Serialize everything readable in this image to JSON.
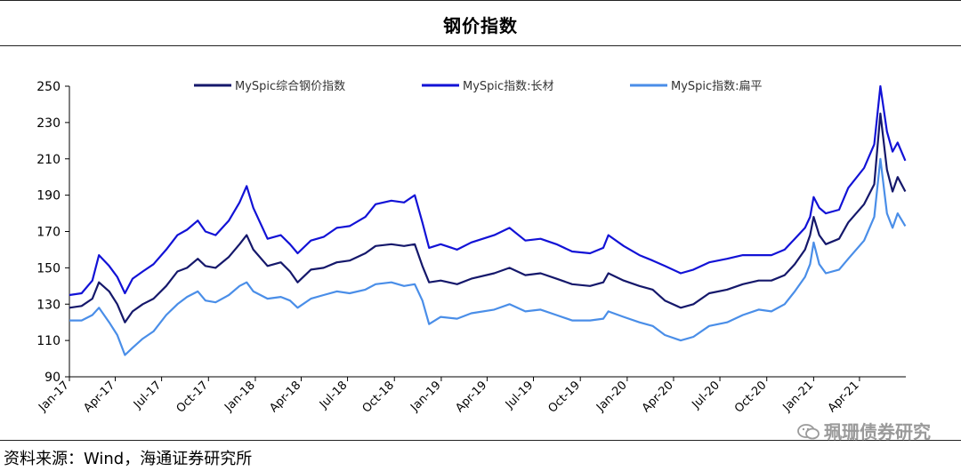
{
  "title": "钢价指数",
  "source": "资料来源：Wind，海通证券研究所",
  "watermark": "珮珊债券研究",
  "chart_data": {
    "type": "line",
    "ylim": [
      90,
      250
    ],
    "yticks": [
      90,
      110,
      130,
      150,
      170,
      190,
      210,
      230,
      250
    ],
    "xlim": [
      "2017-01-01",
      "2021-07-01"
    ],
    "xticks": [
      "Jan-17",
      "Apr-17",
      "Jul-17",
      "Oct-17",
      "Jan-18",
      "Apr-18",
      "Jul-18",
      "Oct-18",
      "Jan-19",
      "Apr-19",
      "Jul-19",
      "Oct-19",
      "Jan-20",
      "Apr-20",
      "Jul-20",
      "Oct-20",
      "Jan-21",
      "Apr-21"
    ],
    "grid": false,
    "legend_position": "top",
    "series": [
      {
        "name": "MySpic综合钢价指数",
        "color": "#15186b",
        "points": [
          [
            "2017-01-01",
            128
          ],
          [
            "2017-01-25",
            129
          ],
          [
            "2017-02-15",
            133
          ],
          [
            "2017-02-28",
            142
          ],
          [
            "2017-03-20",
            137
          ],
          [
            "2017-04-05",
            130
          ],
          [
            "2017-04-20",
            120
          ],
          [
            "2017-05-05",
            126
          ],
          [
            "2017-05-25",
            130
          ],
          [
            "2017-06-15",
            133
          ],
          [
            "2017-07-10",
            140
          ],
          [
            "2017-08-01",
            148
          ],
          [
            "2017-08-20",
            150
          ],
          [
            "2017-09-10",
            155
          ],
          [
            "2017-09-25",
            151
          ],
          [
            "2017-10-15",
            150
          ],
          [
            "2017-11-10",
            156
          ],
          [
            "2017-12-01",
            163
          ],
          [
            "2017-12-15",
            168
          ],
          [
            "2017-12-28",
            160
          ],
          [
            "2018-01-25",
            151
          ],
          [
            "2018-02-20",
            153
          ],
          [
            "2018-03-10",
            148
          ],
          [
            "2018-03-25",
            142
          ],
          [
            "2018-04-20",
            149
          ],
          [
            "2018-05-15",
            150
          ],
          [
            "2018-06-10",
            153
          ],
          [
            "2018-07-05",
            154
          ],
          [
            "2018-08-05",
            158
          ],
          [
            "2018-08-25",
            162
          ],
          [
            "2018-09-25",
            163
          ],
          [
            "2018-10-20",
            162
          ],
          [
            "2018-11-10",
            163
          ],
          [
            "2018-11-25",
            151
          ],
          [
            "2018-12-08",
            142
          ],
          [
            "2018-12-31",
            143
          ],
          [
            "2019-02-01",
            141
          ],
          [
            "2019-03-01",
            144
          ],
          [
            "2019-04-15",
            147
          ],
          [
            "2019-05-15",
            150
          ],
          [
            "2019-06-15",
            146
          ],
          [
            "2019-07-15",
            147
          ],
          [
            "2019-08-15",
            144
          ],
          [
            "2019-09-15",
            141
          ],
          [
            "2019-10-20",
            140
          ],
          [
            "2019-11-15",
            142
          ],
          [
            "2019-11-25",
            147
          ],
          [
            "2019-12-25",
            143
          ],
          [
            "2020-01-25",
            140
          ],
          [
            "2020-02-20",
            138
          ],
          [
            "2020-03-15",
            132
          ],
          [
            "2020-04-15",
            128
          ],
          [
            "2020-05-10",
            130
          ],
          [
            "2020-06-10",
            136
          ],
          [
            "2020-07-15",
            138
          ],
          [
            "2020-08-15",
            141
          ],
          [
            "2020-09-15",
            143
          ],
          [
            "2020-10-10",
            143
          ],
          [
            "2020-11-05",
            146
          ],
          [
            "2020-11-25",
            152
          ],
          [
            "2020-12-15",
            160
          ],
          [
            "2020-12-25",
            168
          ],
          [
            "2021-01-01",
            178
          ],
          [
            "2021-01-12",
            168
          ],
          [
            "2021-01-25",
            163
          ],
          [
            "2021-02-20",
            166
          ],
          [
            "2021-03-10",
            175
          ],
          [
            "2021-04-10",
            185
          ],
          [
            "2021-04-30",
            196
          ],
          [
            "2021-05-12",
            235
          ],
          [
            "2021-05-25",
            204
          ],
          [
            "2021-06-05",
            192
          ],
          [
            "2021-06-15",
            200
          ],
          [
            "2021-06-30",
            192
          ]
        ]
      },
      {
        "name": "MySpic指数:长材",
        "color": "#1212d6",
        "points": [
          [
            "2017-01-01",
            135
          ],
          [
            "2017-01-25",
            136
          ],
          [
            "2017-02-15",
            143
          ],
          [
            "2017-02-28",
            157
          ],
          [
            "2017-03-20",
            151
          ],
          [
            "2017-04-05",
            145
          ],
          [
            "2017-04-20",
            136
          ],
          [
            "2017-05-05",
            144
          ],
          [
            "2017-05-25",
            148
          ],
          [
            "2017-06-15",
            152
          ],
          [
            "2017-07-10",
            160
          ],
          [
            "2017-08-01",
            168
          ],
          [
            "2017-08-20",
            171
          ],
          [
            "2017-09-10",
            176
          ],
          [
            "2017-09-25",
            170
          ],
          [
            "2017-10-15",
            168
          ],
          [
            "2017-11-10",
            176
          ],
          [
            "2017-12-01",
            186
          ],
          [
            "2017-12-15",
            195
          ],
          [
            "2017-12-28",
            183
          ],
          [
            "2018-01-25",
            166
          ],
          [
            "2018-02-20",
            168
          ],
          [
            "2018-03-10",
            163
          ],
          [
            "2018-03-25",
            158
          ],
          [
            "2018-04-20",
            165
          ],
          [
            "2018-05-15",
            167
          ],
          [
            "2018-06-10",
            172
          ],
          [
            "2018-07-05",
            173
          ],
          [
            "2018-08-05",
            178
          ],
          [
            "2018-08-25",
            185
          ],
          [
            "2018-09-25",
            187
          ],
          [
            "2018-10-20",
            186
          ],
          [
            "2018-11-10",
            190
          ],
          [
            "2018-11-25",
            175
          ],
          [
            "2018-12-08",
            161
          ],
          [
            "2018-12-31",
            163
          ],
          [
            "2019-02-01",
            160
          ],
          [
            "2019-03-01",
            164
          ],
          [
            "2019-04-15",
            168
          ],
          [
            "2019-05-15",
            172
          ],
          [
            "2019-06-15",
            165
          ],
          [
            "2019-07-15",
            166
          ],
          [
            "2019-08-15",
            163
          ],
          [
            "2019-09-15",
            159
          ],
          [
            "2019-10-20",
            158
          ],
          [
            "2019-11-15",
            161
          ],
          [
            "2019-11-25",
            168
          ],
          [
            "2019-12-25",
            162
          ],
          [
            "2020-01-25",
            157
          ],
          [
            "2020-02-20",
            154
          ],
          [
            "2020-03-15",
            151
          ],
          [
            "2020-04-15",
            147
          ],
          [
            "2020-05-10",
            149
          ],
          [
            "2020-06-10",
            153
          ],
          [
            "2020-07-15",
            155
          ],
          [
            "2020-08-15",
            157
          ],
          [
            "2020-09-15",
            157
          ],
          [
            "2020-10-10",
            157
          ],
          [
            "2020-11-05",
            160
          ],
          [
            "2020-11-25",
            166
          ],
          [
            "2020-12-15",
            172
          ],
          [
            "2020-12-25",
            178
          ],
          [
            "2021-01-01",
            189
          ],
          [
            "2021-01-12",
            183
          ],
          [
            "2021-01-25",
            180
          ],
          [
            "2021-02-20",
            182
          ],
          [
            "2021-03-10",
            194
          ],
          [
            "2021-04-10",
            205
          ],
          [
            "2021-04-30",
            218
          ],
          [
            "2021-05-12",
            250
          ],
          [
            "2021-05-25",
            225
          ],
          [
            "2021-06-05",
            214
          ],
          [
            "2021-06-15",
            219
          ],
          [
            "2021-06-30",
            209
          ]
        ]
      },
      {
        "name": "MySpic指数:扁平",
        "color": "#4a8ee8",
        "points": [
          [
            "2017-01-01",
            121
          ],
          [
            "2017-01-25",
            121
          ],
          [
            "2017-02-15",
            124
          ],
          [
            "2017-02-28",
            128
          ],
          [
            "2017-03-20",
            120
          ],
          [
            "2017-04-05",
            113
          ],
          [
            "2017-04-20",
            102
          ],
          [
            "2017-05-05",
            106
          ],
          [
            "2017-05-25",
            111
          ],
          [
            "2017-06-15",
            115
          ],
          [
            "2017-07-10",
            124
          ],
          [
            "2017-08-01",
            130
          ],
          [
            "2017-08-20",
            134
          ],
          [
            "2017-09-10",
            137
          ],
          [
            "2017-09-25",
            132
          ],
          [
            "2017-10-15",
            131
          ],
          [
            "2017-11-10",
            135
          ],
          [
            "2017-12-01",
            140
          ],
          [
            "2017-12-15",
            142
          ],
          [
            "2017-12-28",
            137
          ],
          [
            "2018-01-25",
            133
          ],
          [
            "2018-02-20",
            134
          ],
          [
            "2018-03-10",
            132
          ],
          [
            "2018-03-25",
            128
          ],
          [
            "2018-04-20",
            133
          ],
          [
            "2018-05-15",
            135
          ],
          [
            "2018-06-10",
            137
          ],
          [
            "2018-07-05",
            136
          ],
          [
            "2018-08-05",
            138
          ],
          [
            "2018-08-25",
            141
          ],
          [
            "2018-09-25",
            142
          ],
          [
            "2018-10-20",
            140
          ],
          [
            "2018-11-10",
            141
          ],
          [
            "2018-11-25",
            132
          ],
          [
            "2018-12-08",
            119
          ],
          [
            "2018-12-31",
            123
          ],
          [
            "2019-02-01",
            122
          ],
          [
            "2019-03-01",
            125
          ],
          [
            "2019-04-15",
            127
          ],
          [
            "2019-05-15",
            130
          ],
          [
            "2019-06-15",
            126
          ],
          [
            "2019-07-15",
            127
          ],
          [
            "2019-08-15",
            124
          ],
          [
            "2019-09-15",
            121
          ],
          [
            "2019-10-20",
            121
          ],
          [
            "2019-11-15",
            122
          ],
          [
            "2019-11-25",
            126
          ],
          [
            "2019-12-25",
            123
          ],
          [
            "2020-01-25",
            120
          ],
          [
            "2020-02-20",
            118
          ],
          [
            "2020-03-15",
            113
          ],
          [
            "2020-04-15",
            110
          ],
          [
            "2020-05-10",
            112
          ],
          [
            "2020-06-10",
            118
          ],
          [
            "2020-07-15",
            120
          ],
          [
            "2020-08-15",
            124
          ],
          [
            "2020-09-15",
            127
          ],
          [
            "2020-10-10",
            126
          ],
          [
            "2020-11-05",
            130
          ],
          [
            "2020-11-25",
            137
          ],
          [
            "2020-12-15",
            145
          ],
          [
            "2020-12-25",
            152
          ],
          [
            "2021-01-01",
            164
          ],
          [
            "2021-01-12",
            152
          ],
          [
            "2021-01-25",
            147
          ],
          [
            "2021-02-20",
            149
          ],
          [
            "2021-03-10",
            155
          ],
          [
            "2021-04-10",
            165
          ],
          [
            "2021-04-30",
            178
          ],
          [
            "2021-05-12",
            210
          ],
          [
            "2021-05-25",
            180
          ],
          [
            "2021-06-05",
            172
          ],
          [
            "2021-06-15",
            180
          ],
          [
            "2021-06-30",
            173
          ]
        ]
      }
    ]
  }
}
